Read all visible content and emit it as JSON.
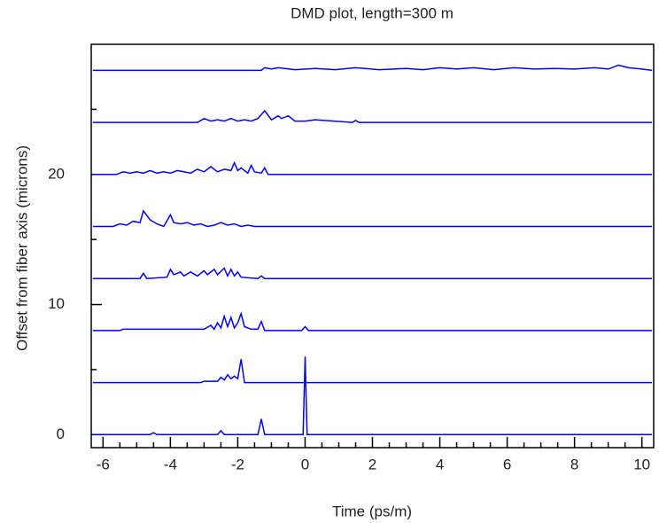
{
  "chart_data": {
    "type": "line",
    "title": "DMD plot, length=300 m",
    "x_label": "Time (ps/m)",
    "y_label": "Offset from fiber axis (microns)",
    "xlim": [
      -6.35,
      10.35
    ],
    "ylim": [
      -1,
      30
    ],
    "xticks": [
      -6,
      -4,
      -2,
      0,
      2,
      4,
      6,
      8,
      10
    ],
    "xminor": [
      -5.5,
      -5,
      -4.5,
      -3.5,
      -3,
      -2.5,
      -1.5,
      -1,
      -0.5,
      0.5,
      1,
      1.5,
      2.5,
      3,
      3.5,
      4.5,
      5,
      5.5,
      6.5,
      7,
      7.5,
      8.5,
      9,
      9.5
    ],
    "yticks": [
      0,
      10,
      20
    ],
    "yminor": [
      5,
      15,
      25
    ],
    "color": "#0000ff",
    "series": [
      {
        "x": [
          -6.3,
          -4.6,
          -4.5,
          -4.4,
          -2.6,
          -2.5,
          -2.4,
          -1.4,
          -1.3,
          -1.2,
          -0.06,
          0,
          0.06,
          10.3
        ],
        "values": [
          0,
          0,
          0.15,
          0,
          0,
          0.3,
          0,
          0,
          1.2,
          0,
          0,
          6,
          0,
          0
        ]
      },
      {
        "x": [
          -6.3,
          -3.1,
          -3.0,
          -2.6,
          -2.5,
          -2.4,
          -2.3,
          -2.2,
          -2.1,
          -2.0,
          -1.9,
          -1.8,
          10.3
        ],
        "values": [
          4,
          4,
          4.1,
          4.1,
          4.4,
          4.2,
          4.6,
          4.3,
          4.5,
          4.3,
          5.8,
          4,
          4
        ]
      },
      {
        "x": [
          -6.3,
          -5.5,
          -5.4,
          -3.0,
          -2.8,
          -2.7,
          -2.6,
          -2.5,
          -2.4,
          -2.3,
          -2.2,
          -2.1,
          -2.0,
          -1.9,
          -1.8,
          -1.6,
          -1.4,
          -1.3,
          -1.2,
          -0.1,
          0,
          0.1,
          10.3
        ],
        "values": [
          8,
          8,
          8.1,
          8.1,
          8.4,
          8.1,
          8.6,
          8.2,
          9.1,
          8.3,
          9.0,
          8.2,
          8.6,
          9.3,
          8.3,
          8.1,
          8.1,
          8.7,
          8,
          8,
          8.3,
          8,
          8
        ]
      },
      {
        "x": [
          -6.3,
          -4.9,
          -4.8,
          -4.7,
          -4.1,
          -4.0,
          -3.9,
          -3.7,
          -3.6,
          -3.4,
          -3.2,
          -3.0,
          -2.9,
          -2.7,
          -2.6,
          -2.4,
          -2.3,
          -2.2,
          -2.1,
          -2.0,
          -1.9,
          -1.4,
          -1.3,
          -1.2,
          10.3
        ],
        "values": [
          12,
          12,
          12.4,
          12,
          12.1,
          12.7,
          12.3,
          12.5,
          12.2,
          12.5,
          12.2,
          12.6,
          12.3,
          12.7,
          12.3,
          12.8,
          12.2,
          12.7,
          12.2,
          12.5,
          12.1,
          12,
          12.2,
          12,
          12
        ]
      },
      {
        "x": [
          -6.3,
          -5.7,
          -5.5,
          -5.3,
          -5.1,
          -4.9,
          -4.8,
          -4.6,
          -4.4,
          -4.2,
          -4.0,
          -3.9,
          -3.7,
          -3.5,
          -3.3,
          -3.1,
          -2.9,
          -2.7,
          -2.5,
          -2.3,
          -2.1,
          -1.9,
          -1.7,
          -1.5,
          -1.3,
          10.3
        ],
        "values": [
          16,
          16,
          16.2,
          16.1,
          16.4,
          16.3,
          17.2,
          16.5,
          16.2,
          16,
          16.9,
          16.3,
          16.2,
          16.3,
          16.1,
          16.2,
          16,
          16.1,
          16.3,
          16.1,
          16.2,
          16,
          16.1,
          16,
          16,
          16
        ]
      },
      {
        "x": [
          -6.3,
          -5.6,
          -5.4,
          -5.2,
          -5.0,
          -4.8,
          -4.6,
          -4.4,
          -4.2,
          -4.0,
          -3.8,
          -3.6,
          -3.4,
          -3.2,
          -3.0,
          -2.8,
          -2.6,
          -2.4,
          -2.2,
          -2.1,
          -2.0,
          -1.9,
          -1.7,
          -1.6,
          -1.5,
          -1.3,
          -1.2,
          -1.1,
          10.3
        ],
        "values": [
          20,
          20,
          20.2,
          20.1,
          20.2,
          20.1,
          20.3,
          20.1,
          20.2,
          20.1,
          20.3,
          20.2,
          20.1,
          20.4,
          20.2,
          20.6,
          20.2,
          20.4,
          20.3,
          20.9,
          20.3,
          20.5,
          20.1,
          20.7,
          20.2,
          20.1,
          20.5,
          20,
          20
        ]
      },
      {
        "x": [
          -6.3,
          -3.2,
          -3.0,
          -2.8,
          -2.6,
          -2.4,
          -2.2,
          -2.0,
          -1.8,
          -1.6,
          -1.4,
          -1.2,
          -1.0,
          -0.8,
          -0.7,
          -0.5,
          -0.3,
          0,
          0.3,
          1.4,
          1.5,
          1.6,
          10.3
        ],
        "values": [
          24,
          24,
          24.3,
          24.1,
          24.2,
          24.1,
          24.3,
          24.1,
          24.2,
          24.1,
          24.3,
          24.9,
          24.2,
          24.5,
          24.3,
          24.5,
          24.1,
          24.1,
          24.2,
          24,
          24.15,
          24,
          24
        ]
      },
      {
        "x": [
          -6.3,
          -1.3,
          -1.2,
          -1.0,
          -0.8,
          -0.3,
          0.3,
          0.9,
          1.5,
          2.2,
          3.0,
          3.5,
          4.0,
          4.5,
          5.0,
          5.6,
          6.2,
          6.8,
          7.4,
          8.0,
          8.6,
          9.0,
          9.3,
          9.6,
          10.0,
          10.3
        ],
        "values": [
          28,
          28,
          28.2,
          28.1,
          28.2,
          28.05,
          28.15,
          28.05,
          28.2,
          28.05,
          28.15,
          28.05,
          28.2,
          28.1,
          28.2,
          28.05,
          28.2,
          28.1,
          28.15,
          28.1,
          28.2,
          28.1,
          28.4,
          28.2,
          28.1,
          28
        ]
      }
    ]
  }
}
